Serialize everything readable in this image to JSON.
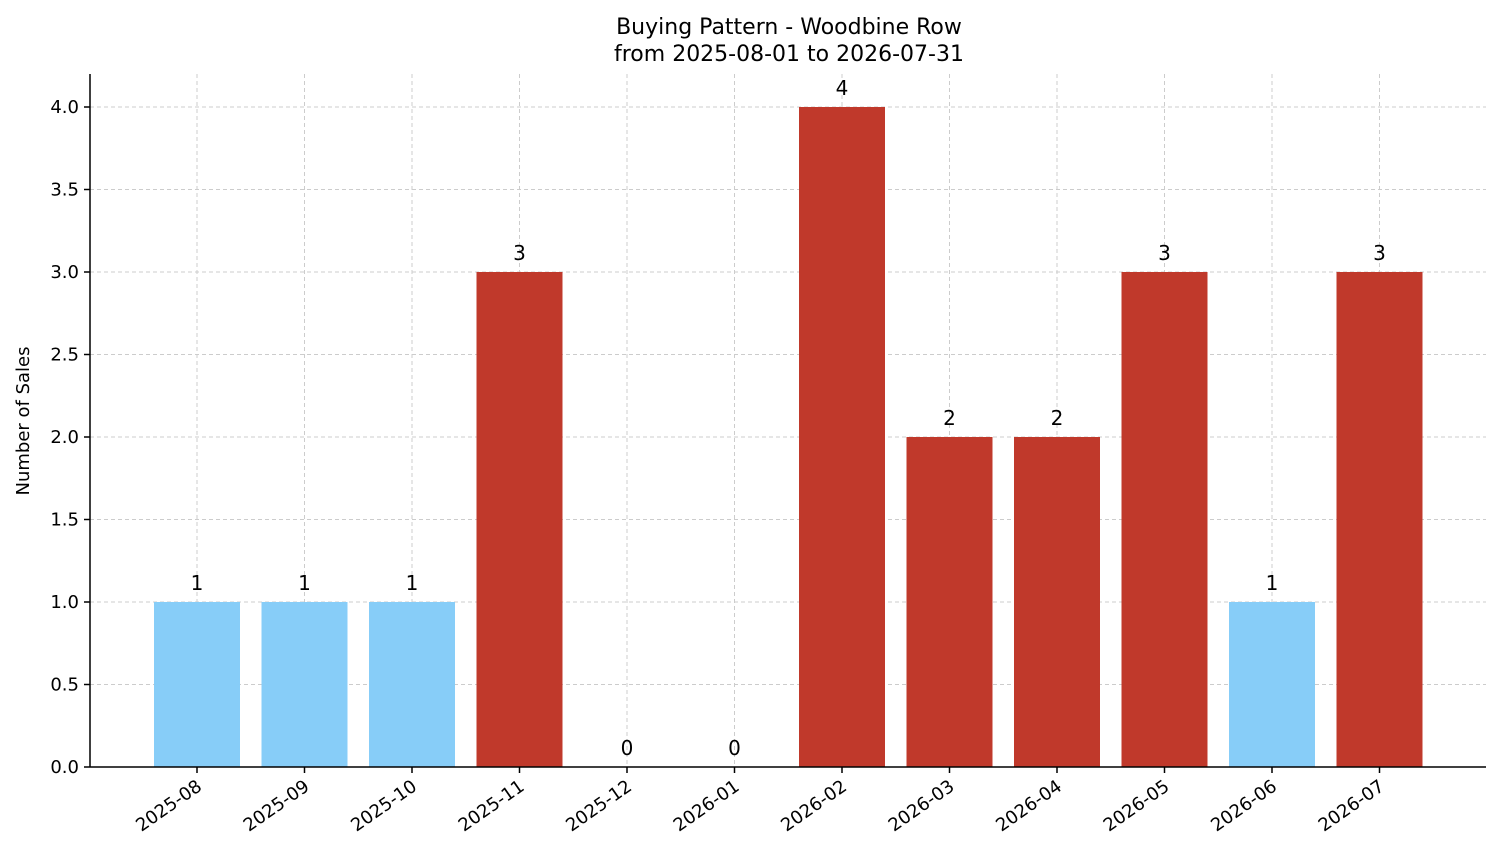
{
  "chart_data": {
    "type": "bar",
    "title": "Buying Pattern - Woodbine Row",
    "subtitle": "from 2025-08-01 to 2026-07-31",
    "xlabel": "",
    "ylabel": "Number of Sales",
    "ylim": [
      0,
      4.2
    ],
    "yticks": [
      "0.0",
      "0.5",
      "1.0",
      "1.5",
      "2.0",
      "2.5",
      "3.0",
      "3.5",
      "4.0"
    ],
    "categories": [
      "2025-08",
      "2025-09",
      "2025-10",
      "2025-11",
      "2025-12",
      "2026-01",
      "2026-02",
      "2026-03",
      "2026-04",
      "2026-05",
      "2026-06",
      "2026-07"
    ],
    "values": [
      1,
      1,
      1,
      3,
      0,
      0,
      4,
      2,
      2,
      3,
      1,
      3
    ],
    "bar_labels": [
      "1",
      "1",
      "1",
      "3",
      "0",
      "0",
      "4",
      "2",
      "2",
      "3",
      "1",
      "3"
    ],
    "bar_colors": [
      "#87cdf8",
      "#87cdf8",
      "#87cdf8",
      "#c0392b",
      "#c0392b",
      "#c0392b",
      "#c0392b",
      "#c0392b",
      "#c0392b",
      "#c0392b",
      "#87cdf8",
      "#c0392b"
    ],
    "grid": true,
    "legend": "none"
  }
}
